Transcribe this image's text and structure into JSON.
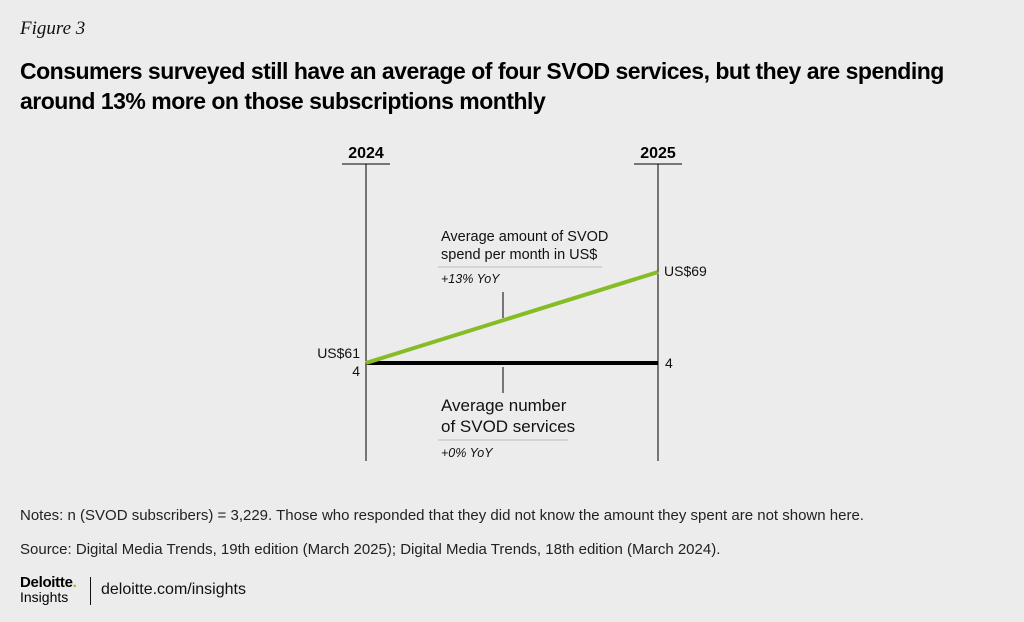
{
  "figure_label": "Figure 3",
  "title": "Consumers surveyed still have an average of four SVOD services, but they are spending around 13% more on those subscriptions monthly",
  "colors": {
    "spend_line": "#86bc25",
    "services_line": "#000000",
    "background": "#ececec"
  },
  "chart_data": {
    "type": "line",
    "categories": [
      "2024",
      "2025"
    ],
    "series": [
      {
        "name": "Average amount of SVOD spend per month in US$",
        "values": [
          61,
          69
        ],
        "value_labels": [
          "US$61",
          "US$69"
        ],
        "change": "+13% YoY",
        "color": "#86bc25"
      },
      {
        "name": "Average number of SVOD services",
        "values": [
          4,
          4
        ],
        "value_labels": [
          "4",
          "4"
        ],
        "change": "+0% YoY",
        "color": "#000000"
      }
    ],
    "annotations": {
      "spend_label_lines": [
        "Average amount of SVOD",
        "spend per month in US$"
      ],
      "services_label_lines": [
        "Average number",
        "of SVOD services"
      ]
    }
  },
  "notes": "Notes: n (SVOD subscribers) = 3,229. Those who responded that they did not know the amount they spent are not shown here.",
  "source": "Source: Digital Media Trends, 19th edition (March 2025); Digital Media Trends, 18th edition (March 2024).",
  "footer": {
    "brand": "Deloitte",
    "brand_dot": ".",
    "sub": "Insights",
    "url": "deloitte.com/insights"
  }
}
